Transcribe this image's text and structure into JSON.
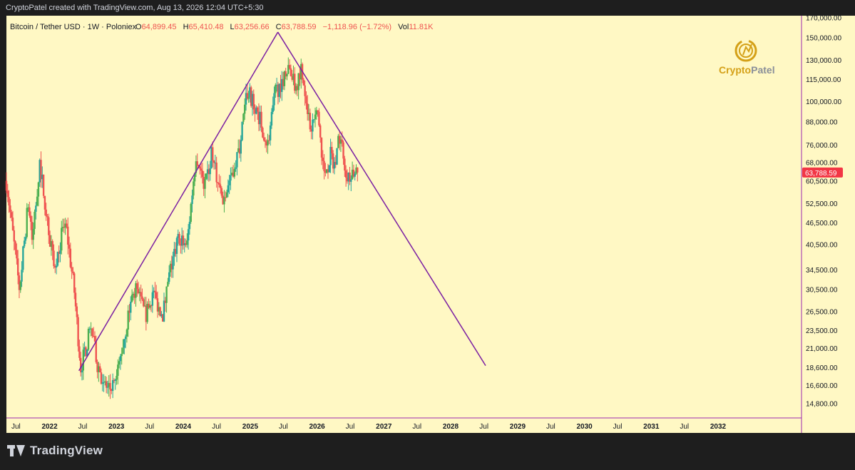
{
  "header": {
    "attribution": "CryptoPatel created with TradingView.com, Aug 13, 2026 12:04 UTC+5:30"
  },
  "legend": {
    "symbol": "Bitcoin / Tether USD · 1W · Poloniex",
    "open_label": "O",
    "open": "64,899.45",
    "high_label": "H",
    "high": "65,410.48",
    "low_label": "L",
    "low": "63,256.66",
    "close_label": "C",
    "close": "63,788.59",
    "change": "−1,118.96 (−1.72%)",
    "vol_label": "Vol",
    "vol": "11.81K"
  },
  "watermark": {
    "text_a": "Crypto",
    "text_b": "Patel"
  },
  "price_badge": "63,788.59",
  "branding": {
    "name": "TradingView"
  },
  "colors": {
    "background": "#fff8c4",
    "up": "#26a69a",
    "up_bright": "#4caf50",
    "down": "#ef5350",
    "trendline": "#7b1fa2",
    "badge": "#f23645",
    "axis_text": "#131722"
  },
  "chart_data": {
    "type": "candlestick",
    "symbol": "Bitcoin / Tether USD",
    "interval": "1W",
    "exchange": "Poloniex",
    "scale": "log",
    "ylim": [
      13500,
      172000
    ],
    "y_ticks": [
      {
        "v": 170000,
        "label": "170,000.00"
      },
      {
        "v": 150000,
        "label": "150,000.00"
      },
      {
        "v": 130000,
        "label": "130,000.00"
      },
      {
        "v": 115000,
        "label": "115,000.00"
      },
      {
        "v": 100000,
        "label": "100,000.00"
      },
      {
        "v": 88000,
        "label": "88,000.00"
      },
      {
        "v": 76000,
        "label": "76,000.00"
      },
      {
        "v": 68000,
        "label": "68,000.00"
      },
      {
        "v": 60500,
        "label": "60,500.00"
      },
      {
        "v": 52500,
        "label": "52,500.00"
      },
      {
        "v": 46500,
        "label": "46,500.00"
      },
      {
        "v": 40500,
        "label": "40,500.00"
      },
      {
        "v": 34500,
        "label": "34,500.00"
      },
      {
        "v": 30500,
        "label": "30,500.00"
      },
      {
        "v": 26500,
        "label": "26,500.00"
      },
      {
        "v": 23500,
        "label": "23,500.00"
      },
      {
        "v": 21000,
        "label": "21,000.00"
      },
      {
        "v": 18600,
        "label": "18,600.00"
      },
      {
        "v": 16600,
        "label": "16,600.00"
      },
      {
        "v": 14800,
        "label": "14,800.00"
      }
    ],
    "x_range": [
      "2021-05-10",
      "2033-04-01"
    ],
    "x_ticks": [
      {
        "date": "2021-07-01",
        "label": "Jul"
      },
      {
        "date": "2022-01-01",
        "label": "2022"
      },
      {
        "date": "2022-07-01",
        "label": "Jul"
      },
      {
        "date": "2023-01-01",
        "label": "2023"
      },
      {
        "date": "2023-07-01",
        "label": "Jul"
      },
      {
        "date": "2024-01-01",
        "label": "2024"
      },
      {
        "date": "2024-07-01",
        "label": "Jul"
      },
      {
        "date": "2025-01-01",
        "label": "2025"
      },
      {
        "date": "2025-07-01",
        "label": "Jul"
      },
      {
        "date": "2026-01-01",
        "label": "2026"
      },
      {
        "date": "2026-07-01",
        "label": "Jul"
      },
      {
        "date": "2027-01-01",
        "label": "2027"
      },
      {
        "date": "2027-07-01",
        "label": "Jul"
      },
      {
        "date": "2028-01-01",
        "label": "2028"
      },
      {
        "date": "2028-07-01",
        "label": "Jul"
      },
      {
        "date": "2029-01-01",
        "label": "2029"
      },
      {
        "date": "2029-07-01",
        "label": "Jul"
      },
      {
        "date": "2030-01-01",
        "label": "2030"
      },
      {
        "date": "2030-07-01",
        "label": "Jul"
      },
      {
        "date": "2031-01-01",
        "label": "2031"
      },
      {
        "date": "2031-07-01",
        "label": "Jul"
      },
      {
        "date": "2032-01-01",
        "label": "2032"
      }
    ],
    "price_path": [
      [
        "2021-05-10",
        60500
      ],
      [
        "2021-07-20",
        30500
      ],
      [
        "2021-09-06",
        52500
      ],
      [
        "2021-09-27",
        41000
      ],
      [
        "2021-11-08",
        68000
      ],
      [
        "2021-12-20",
        47000
      ],
      [
        "2022-01-24",
        35000
      ],
      [
        "2022-03-28",
        47000
      ],
      [
        "2022-05-16",
        30000
      ],
      [
        "2022-06-20",
        18600
      ],
      [
        "2022-08-15",
        24000
      ],
      [
        "2022-09-19",
        19000
      ],
      [
        "2022-11-14",
        16000
      ],
      [
        "2022-12-26",
        16600
      ],
      [
        "2023-03-20",
        28000
      ],
      [
        "2023-04-17",
        30500
      ],
      [
        "2023-06-12",
        25500
      ],
      [
        "2023-07-17",
        30000
      ],
      [
        "2023-09-11",
        26000
      ],
      [
        "2023-10-23",
        34500
      ],
      [
        "2023-12-11",
        43000
      ],
      [
        "2024-01-22",
        40500
      ],
      [
        "2024-03-11",
        72000
      ],
      [
        "2024-05-01",
        58000
      ],
      [
        "2024-06-03",
        71000
      ],
      [
        "2024-08-05",
        52500
      ],
      [
        "2024-09-16",
        63000
      ],
      [
        "2024-10-28",
        72000
      ],
      [
        "2024-12-16",
        106000
      ],
      [
        "2025-02-03",
        97000
      ],
      [
        "2025-04-07",
        76000
      ],
      [
        "2025-05-19",
        106000
      ],
      [
        "2025-07-14",
        120000
      ],
      [
        "2025-08-11",
        123000
      ],
      [
        "2025-09-01",
        108000
      ],
      [
        "2025-10-06",
        124000
      ],
      [
        "2025-11-03",
        103000
      ],
      [
        "2025-11-24",
        85000
      ],
      [
        "2026-01-05",
        93000
      ],
      [
        "2026-02-09",
        63000
      ],
      [
        "2026-03-16",
        71000
      ],
      [
        "2026-04-13",
        67000
      ],
      [
        "2026-05-04",
        81000
      ],
      [
        "2026-06-08",
        65000
      ],
      [
        "2026-07-06",
        61000
      ],
      [
        "2026-08-10",
        63788.59
      ]
    ],
    "trendlines": [
      {
        "from": [
          "2022-06-10",
          18200
        ],
        "to": [
          "2025-06-01",
          155000
        ]
      },
      {
        "from": [
          "2025-06-01",
          155000
        ],
        "to": [
          "2028-07-10",
          18800
        ]
      }
    ],
    "last_price": 63788.59
  }
}
